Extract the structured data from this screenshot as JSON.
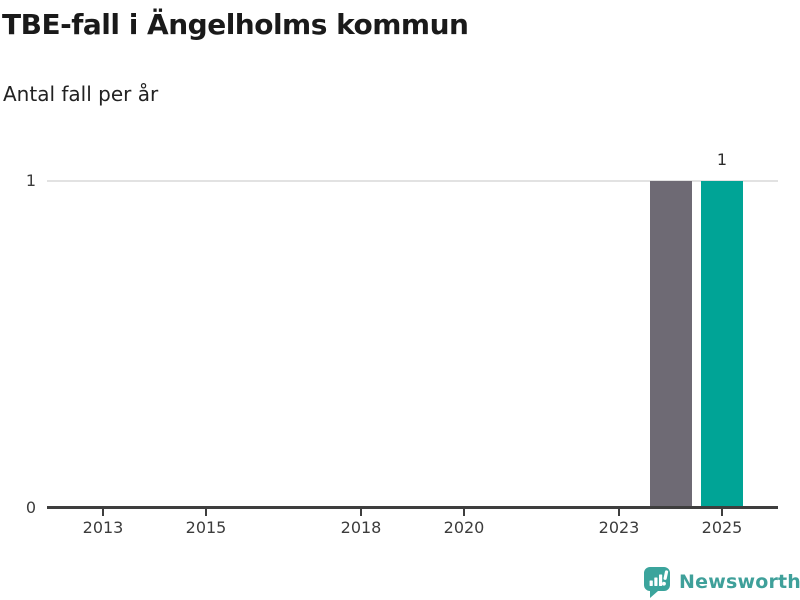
{
  "header": {
    "title": "TBE-fall i Ängelholms kommun",
    "subtitle": "Antal fall per år"
  },
  "chart_data": {
    "type": "bar",
    "title": "TBE-fall i Ängelholms kommun",
    "subtitle": "Antal fall per år",
    "x_axis": {
      "tick_labels": [
        "2013",
        "2015",
        "2018",
        "2020",
        "2023",
        "2025"
      ],
      "tick_years": [
        2013,
        2015,
        2018,
        2020,
        2023,
        2025
      ],
      "range_years": [
        2011.9,
        2026.1
      ]
    },
    "y_axis": {
      "ticks": [
        {
          "value": 0,
          "label": "0"
        },
        {
          "value": 1,
          "label": "1"
        }
      ],
      "range": [
        0,
        1
      ],
      "gridlines_at": [
        1
      ]
    },
    "bars": [
      {
        "year": 2024,
        "value": 1,
        "color": "#6e6a74",
        "data_label": ""
      },
      {
        "year": 2025,
        "value": 1,
        "color": "#00a496",
        "data_label": "1"
      }
    ],
    "legend": "none",
    "grid": "horizontal-only"
  },
  "colors": {
    "title_text": "#1a1a1a",
    "axis_line": "#3e3e3e",
    "tick_label": "#3c3c3c",
    "gridline": "#e2e2e2",
    "bar_default": "#6e6a74",
    "bar_highlight": "#00a496",
    "brand_teal": "#3fa09a"
  },
  "footer": {
    "brand_name": "Newsworthy"
  }
}
